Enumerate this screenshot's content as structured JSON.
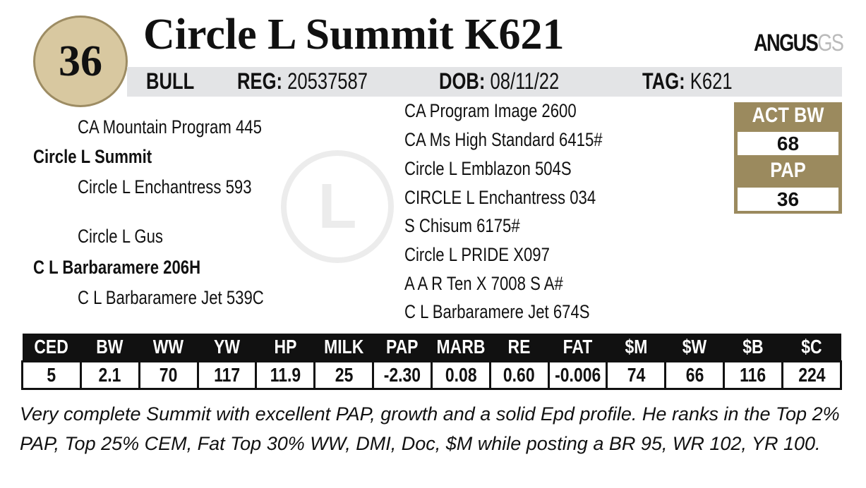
{
  "lot_number": "36",
  "name": "Circle L Summit K621",
  "logo": {
    "main": "ANGUS",
    "suffix": "GS"
  },
  "info": {
    "sex": "BULL",
    "reg_label": "REG:",
    "reg": "20537587",
    "dob_label": "DOB:",
    "dob": "08/11/22",
    "tag_label": "TAG:",
    "tag": "K621"
  },
  "pedigree_left": [
    "CA Mountain Program 445",
    "Circle L Summit",
    "Circle L Enchantress 593",
    "Circle L Gus",
    "C L Barbaramere 206H",
    "C L Barbaramere Jet 539C"
  ],
  "pedigree_right": [
    "CA Program Image 2600",
    "CA Ms High Standard 6415#",
    "Circle L Emblazon 504S",
    "CIRCLE L Enchantress 034",
    "S Chisum 6175#",
    "Circle L PRIDE X097",
    "A A R Ten X 7008 S A#",
    "C L Barbaramere Jet 674S"
  ],
  "watermark": "L",
  "stats_box": {
    "act_bw_label": "ACT BW",
    "act_bw": "68",
    "pap_label": "PAP",
    "pap": "36"
  },
  "epd": {
    "headers": [
      "CED",
      "BW",
      "WW",
      "YW",
      "HP",
      "MILK",
      "PAP",
      "MARB",
      "RE",
      "FAT",
      "$M",
      "$W",
      "$B",
      "$C"
    ],
    "values": [
      "5",
      "2.1",
      "70",
      "117",
      "11.9",
      "25",
      "-2.30",
      "0.08",
      "0.60",
      "-0.006",
      "74",
      "66",
      "116",
      "224"
    ]
  },
  "description": "Very complete Summit with excellent PAP, growth and a solid Epd profile.  He ranks in the Top 2% PAP, Top 25% CEM, Fat Top 30% WW, DMI, Doc, $M while posting a BR 95, WR 102, YR 100.",
  "colors": {
    "gold": "#9b8a5e",
    "circle": "#d8c8a0",
    "bar": "#e3e4e6"
  }
}
